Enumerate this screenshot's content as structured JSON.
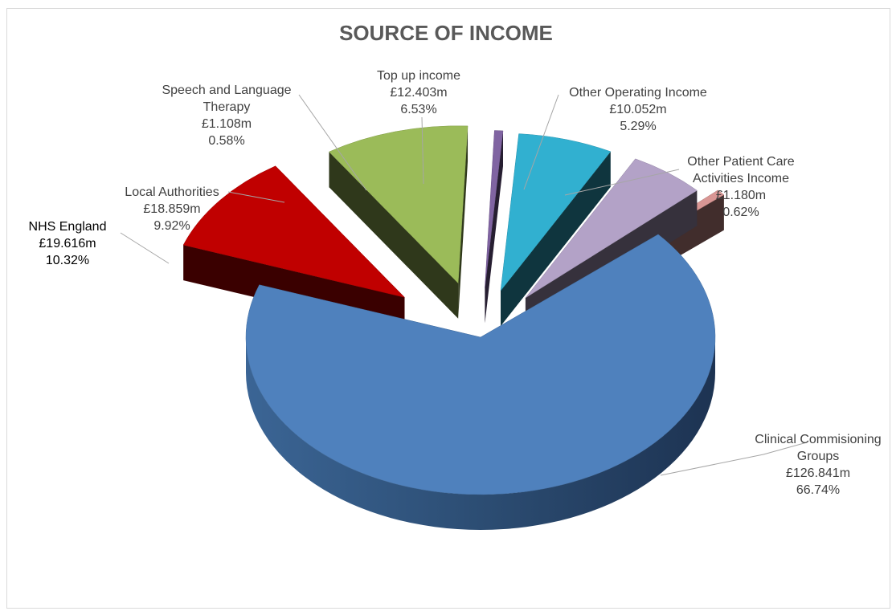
{
  "chart_data": {
    "type": "pie",
    "title": "SOURCE OF INCOME",
    "three_d": true,
    "exploded": true,
    "legend": "none",
    "slices": [
      {
        "name": "Clinical Commisioning Groups",
        "value_label": "£126.841m",
        "value": 126.841,
        "percent": 66.74,
        "percent_label": "66.74%",
        "color": "#4F81BD",
        "label_lines": [
          "Clinical Commisioning",
          "Groups",
          "£126.841m",
          "66.74%"
        ]
      },
      {
        "name": "NHS England",
        "value_label": "£19.616m",
        "value": 19.616,
        "percent": 10.32,
        "percent_label": "10.32%",
        "color": "#C00000",
        "label_lines": [
          "NHS England",
          "£19.616m",
          "10.32%"
        ]
      },
      {
        "name": "Local Authorities",
        "value_label": "£18.859m",
        "value": 18.859,
        "percent": 9.92,
        "percent_label": "9.92%",
        "color": "#9BBB59",
        "label_lines": [
          "Local Authorities",
          "£18.859m",
          "9.92%"
        ]
      },
      {
        "name": "Speech and Language Therapy",
        "value_label": "£1.108m",
        "value": 1.108,
        "percent": 0.58,
        "percent_label": "0.58%",
        "color": "#8064A2",
        "label_lines": [
          "Speech and Language",
          "Therapy",
          "£1.108m",
          "0.58%"
        ]
      },
      {
        "name": "Top up income",
        "value_label": "£12.403m",
        "value": 12.403,
        "percent": 6.53,
        "percent_label": "6.53%",
        "color": "#31B0D0",
        "label_lines": [
          "Top up income",
          "£12.403m",
          "6.53%"
        ]
      },
      {
        "name": "Other Operating Income",
        "value_label": "£10.052m",
        "value": 10.052,
        "percent": 5.29,
        "percent_label": "5.29%",
        "color": "#B3A2C7",
        "label_lines": [
          "Other Operating Income",
          "£10.052m",
          "5.29%"
        ]
      },
      {
        "name": "Other Patient Care Activities Income",
        "value_label": "£1.180m",
        "value": 1.18,
        "percent": 0.62,
        "percent_label": "0.62%",
        "color": "#D99694",
        "label_lines": [
          "Other Patient Care",
          "Activities Income",
          "£1.180m",
          "0.62%"
        ]
      }
    ]
  }
}
